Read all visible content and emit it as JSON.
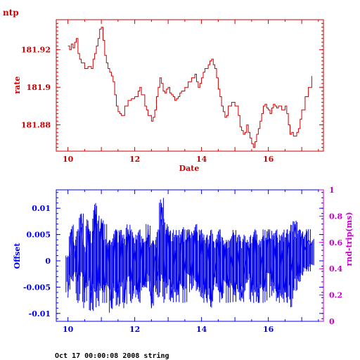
{
  "title": "ntp",
  "footer": "Oct 17 00:00:08 2008 string",
  "colors": {
    "top": "#cc0000",
    "bottom": "#0000ee",
    "rtt": "#cc00cc"
  },
  "chart_data": [
    {
      "type": "line",
      "xlabel": "Date",
      "ylabel": "rate",
      "xlim": [
        9.65,
        17.65
      ],
      "ylim": [
        181.866,
        181.936
      ],
      "xticks": [
        "10",
        "12",
        "14",
        "16"
      ],
      "yticks": [
        "181.88",
        "181.9",
        "181.92"
      ],
      "series": [
        {
          "x": [
            10.0,
            10.05,
            10.1,
            10.15,
            10.2,
            10.25,
            10.3,
            10.35,
            10.4,
            10.5,
            10.6,
            10.7,
            10.75,
            10.8,
            10.85,
            10.9,
            10.95,
            11.0,
            11.05,
            11.1,
            11.15,
            11.2,
            11.25,
            11.3,
            11.35,
            11.4,
            11.45,
            11.5,
            11.55,
            11.6,
            11.7,
            11.8,
            11.9,
            12.0,
            12.1,
            12.15,
            12.2,
            12.3,
            12.35,
            12.4,
            12.5,
            12.55,
            12.6,
            12.65,
            12.7,
            12.75,
            12.8,
            12.85,
            12.9,
            12.95,
            13.0,
            13.05,
            13.1,
            13.15,
            13.2,
            13.25,
            13.3,
            13.35,
            13.4,
            13.5,
            13.6,
            13.7,
            13.8,
            13.85,
            13.9,
            13.95,
            14.0,
            14.05,
            14.1,
            14.2,
            14.25,
            14.3,
            14.35,
            14.4,
            14.45,
            14.5,
            14.55,
            14.6,
            14.65,
            14.7,
            14.75,
            14.8,
            14.9,
            15.0,
            15.1,
            15.15,
            15.2,
            15.25,
            15.3,
            15.35,
            15.4,
            15.45,
            15.5,
            15.55,
            15.6,
            15.65,
            15.7,
            15.75,
            15.8,
            15.85,
            15.9,
            15.95,
            16.0,
            16.05,
            16.1,
            16.15,
            16.2,
            16.25,
            16.3,
            16.4,
            16.5,
            16.55,
            16.6,
            16.65,
            16.7,
            16.75,
            16.8,
            16.85,
            16.9,
            16.95,
            17.0,
            17.1,
            17.2,
            17.3
          ],
          "y": [
            181.922,
            181.92,
            181.923,
            181.921,
            181.924,
            181.926,
            181.918,
            181.915,
            181.913,
            181.91,
            181.911,
            181.91,
            181.915,
            181.918,
            181.922,
            181.926,
            181.931,
            181.932,
            181.925,
            181.917,
            181.913,
            181.91,
            181.908,
            181.906,
            181.903,
            181.896,
            181.89,
            181.887,
            181.886,
            181.885,
            181.89,
            181.893,
            181.894,
            181.895,
            181.898,
            181.9,
            181.896,
            181.89,
            181.888,
            181.885,
            181.882,
            181.884,
            181.888,
            181.895,
            181.9,
            181.905,
            181.902,
            181.898,
            181.897,
            181.899,
            181.9,
            181.897,
            181.896,
            181.895,
            181.893,
            181.894,
            181.895,
            181.897,
            181.898,
            181.9,
            181.903,
            181.905,
            181.907,
            181.903,
            181.9,
            181.902,
            181.905,
            181.908,
            181.91,
            181.912,
            181.914,
            181.915,
            181.912,
            181.91,
            181.905,
            181.899,
            181.895,
            181.89,
            181.887,
            181.884,
            181.885,
            181.89,
            181.892,
            181.89,
            181.885,
            181.879,
            181.877,
            181.875,
            181.876,
            181.88,
            181.876,
            181.873,
            181.87,
            181.868,
            181.871,
            181.875,
            181.878,
            181.882,
            181.886,
            181.89,
            181.891,
            181.889,
            181.888,
            181.886,
            181.889,
            181.891,
            181.89,
            181.889,
            181.89,
            181.888,
            181.89,
            181.886,
            181.88,
            181.875,
            181.876,
            181.874,
            181.874,
            181.876,
            181.878,
            181.883,
            181.888,
            181.895,
            181.9,
            181.906
          ]
        }
      ]
    },
    {
      "type": "line",
      "ylabel": "Offset",
      "y2label": "rnd-trip(ms)",
      "xlim": [
        9.65,
        17.65
      ],
      "ylim": [
        -0.0115,
        0.0135
      ],
      "y2lim": [
        0,
        1
      ],
      "xticks": [
        "10",
        "12",
        "14",
        "16"
      ],
      "yticks": [
        "-0.01",
        "-0.005",
        "0",
        "0.005",
        "0.01"
      ],
      "y2ticks": [
        "0",
        "0.2",
        "0.4",
        "0.6",
        "0.8",
        "1"
      ],
      "series": [
        {
          "x": [
            10.0,
            10.1,
            10.2,
            10.3,
            10.4,
            10.5,
            10.6,
            10.7,
            10.8,
            10.9,
            11.0,
            11.1,
            11.2,
            11.3,
            11.4,
            11.5,
            11.6,
            11.7,
            11.8,
            11.9,
            12.0,
            12.1,
            12.2,
            12.3,
            12.4,
            12.5,
            12.6,
            12.7,
            12.8,
            12.9,
            13.0,
            13.1,
            13.2,
            13.3,
            13.4,
            13.5,
            13.6,
            13.7,
            13.8,
            13.9,
            14.0,
            14.1,
            14.2,
            14.3,
            14.4,
            14.5,
            14.6,
            14.7,
            14.8,
            14.9,
            15.0,
            15.1,
            15.2,
            15.3,
            15.4,
            15.5,
            15.6,
            15.7,
            15.8,
            15.9,
            16.0,
            16.1,
            16.2,
            16.3,
            16.4,
            16.5,
            16.6,
            16.7,
            16.8,
            16.9,
            17.0,
            17.1,
            17.2,
            17.3
          ],
          "y": [
            -0.007,
            0.006,
            0.002,
            -0.004,
            0.009,
            -0.006,
            0.007,
            -0.008,
            0.01,
            -0.005,
            0.008,
            -0.006,
            0.003,
            -0.009,
            0.005,
            -0.007,
            0.004,
            -0.008,
            0.006,
            -0.004,
            0.002,
            -0.006,
            0.003,
            -0.005,
            0.006,
            -0.009,
            0.001,
            -0.003,
            0.011,
            -0.004,
            0.006,
            -0.007,
            0.002,
            -0.006,
            0.005,
            -0.002,
            0.006,
            -0.003,
            0.006,
            -0.005,
            0.004,
            -0.006,
            0.003,
            -0.008,
            -0.002,
            0.004,
            -0.007,
            0.003,
            -0.005,
            0.001,
            -0.006,
            0.002,
            -0.007,
            -0.001,
            0.003,
            -0.006,
            0.005,
            -0.008,
            0.001,
            -0.005,
            0.006,
            -0.004,
            0.003,
            -0.007,
            0.002,
            -0.006,
            0.004,
            -0.002,
            0.007,
            -0.003,
            0.005,
            0.002,
            0.004,
            0.003
          ],
          "ymin": [
            -0.006,
            -0.004,
            -0.003,
            -0.008,
            -0.003,
            -0.009,
            -0.005,
            -0.01,
            -0.006,
            -0.009,
            -0.007,
            -0.008,
            -0.007,
            -0.01,
            -0.006,
            -0.009,
            -0.005,
            -0.009,
            -0.004,
            -0.008,
            -0.007,
            -0.008,
            -0.006,
            -0.008,
            -0.004,
            -0.009,
            -0.006,
            -0.007,
            -0.004,
            -0.008,
            -0.005,
            -0.008,
            -0.006,
            -0.008,
            -0.006,
            -0.008,
            -0.004,
            -0.006,
            -0.004,
            -0.006,
            -0.007,
            -0.008,
            -0.008,
            -0.009,
            -0.005,
            -0.006,
            -0.008,
            -0.006,
            -0.008,
            -0.006,
            -0.008,
            -0.006,
            -0.008,
            -0.006,
            -0.004,
            -0.008,
            -0.006,
            -0.008,
            -0.006,
            -0.008,
            -0.004,
            -0.007,
            -0.006,
            -0.008,
            -0.007,
            -0.008,
            -0.008,
            -0.009,
            -0.006,
            -0.004,
            -0.003,
            -0.002,
            -0.002,
            -0.001
          ],
          "ymax": [
            0.001,
            0.007,
            0.004,
            0.006,
            0.009,
            0.003,
            0.008,
            0.006,
            0.011,
            0.009,
            0.009,
            0.007,
            0.005,
            0.004,
            0.006,
            0.006,
            0.006,
            0.005,
            0.007,
            0.006,
            0.005,
            0.006,
            0.005,
            0.006,
            0.007,
            0.004,
            0.004,
            0.006,
            0.012,
            0.008,
            0.007,
            0.006,
            0.005,
            0.006,
            0.007,
            0.006,
            0.007,
            0.006,
            0.007,
            0.006,
            0.006,
            0.005,
            0.005,
            0.006,
            0.004,
            0.006,
            0.005,
            0.005,
            0.004,
            0.006,
            0.006,
            0.005,
            0.004,
            0.005,
            0.004,
            0.005,
            0.006,
            0.004,
            0.005,
            0.006,
            0.007,
            0.006,
            0.006,
            0.005,
            0.005,
            0.006,
            0.006,
            0.007,
            0.008,
            0.006,
            0.006,
            0.007,
            0.006,
            0.005
          ]
        }
      ]
    }
  ]
}
